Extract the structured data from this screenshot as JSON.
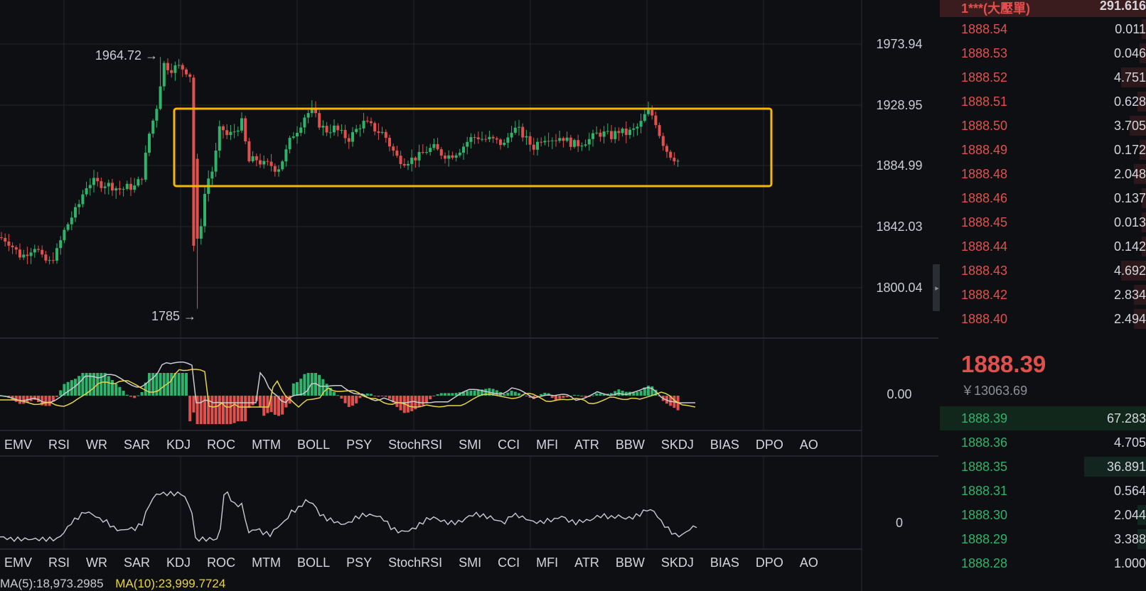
{
  "main_chart": {
    "price_axis": [
      "1973.94",
      "1928.95",
      "1884.99",
      "1842.03",
      "1800.04"
    ],
    "high_marker": "1964.72 →",
    "low_marker": "1785 →",
    "colors": {
      "up": "#2eb36b",
      "down": "#e0514e",
      "highlight_box": "#f5b700",
      "macd_line": "#c9ccd3",
      "signal_line": "#e8d44a"
    }
  },
  "macd_pane": {
    "zero_label": "0.00"
  },
  "lower_pane": {
    "zero_label": "0"
  },
  "indicator_tabs": [
    "EMV",
    "RSI",
    "WR",
    "SAR",
    "KDJ",
    "ROC",
    "MTM",
    "BOLL",
    "PSY",
    "StochRSI",
    "SMI",
    "CCI",
    "MFI",
    "ATR",
    "BBW",
    "SKDJ",
    "BIAS",
    "DPO",
    "AO"
  ],
  "ma_readout": {
    "ma5": "MA(5):18,973.2985",
    "ma10": "MA(10):23,999.7724"
  },
  "orderbook": {
    "top_row": {
      "price": "1***(大壓單)",
      "qty": "291.616"
    },
    "asks": [
      {
        "price": "1888.54",
        "qty": "0.011",
        "depth": 0.02
      },
      {
        "price": "1888.53",
        "qty": "0.046",
        "depth": 0.03
      },
      {
        "price": "1888.52",
        "qty": "4.751",
        "depth": 0.12
      },
      {
        "price": "1888.51",
        "qty": "0.628",
        "depth": 0.04
      },
      {
        "price": "1888.50",
        "qty": "3.705",
        "depth": 0.08
      },
      {
        "price": "1888.49",
        "qty": "0.172",
        "depth": 0.03
      },
      {
        "price": "1888.48",
        "qty": "2.048",
        "depth": 0.06
      },
      {
        "price": "1888.46",
        "qty": "0.137",
        "depth": 0.02
      },
      {
        "price": "1888.45",
        "qty": "0.013",
        "depth": 0.02
      },
      {
        "price": "1888.44",
        "qty": "0.142",
        "depth": 0.02
      },
      {
        "price": "1888.43",
        "qty": "4.692",
        "depth": 0.12
      },
      {
        "price": "1888.42",
        "qty": "2.834",
        "depth": 0.06
      },
      {
        "price": "1888.40",
        "qty": "2.494",
        "depth": 0.06
      }
    ],
    "last_price": "1888.39",
    "cny_price": "￥13063.69",
    "bids": [
      {
        "price": "1888.39",
        "qty": "67.283",
        "depth": 0.0
      },
      {
        "price": "1888.36",
        "qty": "4.705",
        "depth": 0.0
      },
      {
        "price": "1888.35",
        "qty": "36.891",
        "depth": 0.3
      },
      {
        "price": "1888.31",
        "qty": "0.564",
        "depth": 0.0
      },
      {
        "price": "1888.30",
        "qty": "2.044",
        "depth": 0.04
      },
      {
        "price": "1888.29",
        "qty": "3.388",
        "depth": 0.04
      },
      {
        "price": "1888.28",
        "qty": "1.000",
        "depth": 0.0
      }
    ]
  }
}
